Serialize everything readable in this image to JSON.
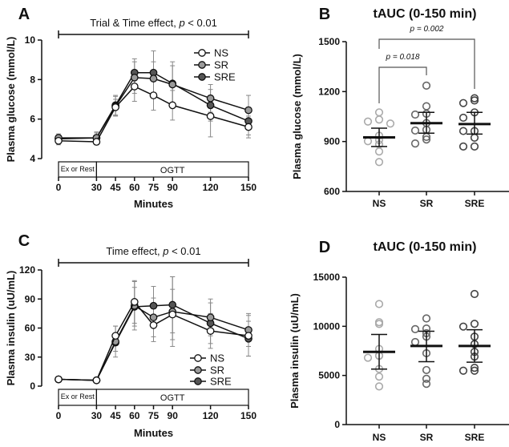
{
  "chart_data": [
    {
      "panel": "A",
      "type": "line",
      "annotation": {
        "text": "Trial & Time effect, ",
        "p": "p",
        "rest": " < 0.01"
      },
      "xlabel": "Minutes",
      "ylabel": "Plasma glucose (mmol/L)",
      "x": [
        0,
        30,
        45,
        60,
        75,
        90,
        120,
        150
      ],
      "yticks": [
        4,
        6,
        8,
        10
      ],
      "ylim": [
        4,
        10
      ],
      "phases": [
        {
          "label": "Ex or Rest",
          "from": 0,
          "to": 30
        },
        {
          "label": "OGTT",
          "from": 30,
          "to": 150
        }
      ],
      "legend_position": "top-right",
      "series": [
        {
          "name": "NS",
          "color": "#ffffff",
          "values": [
            4.9,
            4.85,
            6.6,
            7.65,
            7.2,
            6.7,
            6.15,
            5.6
          ],
          "error": [
            0.2,
            0.15,
            0.4,
            0.75,
            0.75,
            0.75,
            1.05,
            0.55
          ]
        },
        {
          "name": "SR",
          "color": "#9a9a9a",
          "values": [
            5.05,
            5.05,
            6.65,
            8.1,
            8.05,
            7.75,
            7.05,
            6.45
          ],
          "error": [
            0.2,
            0.25,
            0.5,
            0.8,
            0.85,
            0.95,
            0.7,
            0.75
          ]
        },
        {
          "name": "SRE",
          "color": "#555555",
          "values": [
            5.0,
            5.05,
            6.7,
            8.35,
            8.35,
            7.8,
            6.7,
            5.9
          ],
          "error": [
            0.15,
            0.3,
            0.5,
            0.7,
            1.1,
            1.1,
            0.8,
            0.7
          ]
        }
      ]
    },
    {
      "panel": "B",
      "type": "scatter",
      "title": "tAUC (0-150 min)",
      "ylabel": "Plasma glucose (mmol/L)",
      "categories": [
        "NS",
        "SR",
        "SRE"
      ],
      "yticks": [
        600,
        900,
        1200,
        1500
      ],
      "ylim": [
        600,
        1500
      ],
      "groups": [
        {
          "name": "NS",
          "color": "#aaaaaa",
          "points": [
            1075,
            1032,
            1020,
            1008,
            935,
            909,
            902,
            883,
            840,
            777
          ],
          "mean": 925,
          "sem": [
            870,
            980
          ]
        },
        {
          "name": "SR",
          "color": "#666666",
          "points": [
            1236,
            1112,
            1067,
            1062,
            1011,
            971,
            966,
            928,
            912,
            888
          ],
          "mean": 1010,
          "sem": [
            950,
            1075
          ]
        },
        {
          "name": "SRE",
          "color": "#444444",
          "points": [
            1160,
            1147,
            1131,
            1075,
            1043,
            963,
            963,
            923,
            870,
            870
          ],
          "mean": 1005,
          "sem": [
            945,
            1075
          ]
        }
      ],
      "comparisons": [
        {
          "from": "NS",
          "to": "SR",
          "label": "p = 0.018"
        },
        {
          "from": "NS",
          "to": "SRE",
          "label": "p = 0.002"
        }
      ]
    },
    {
      "panel": "C",
      "type": "line",
      "annotation": {
        "text": "Time effect, ",
        "p": "p",
        "rest": " < 0.01"
      },
      "xlabel": "Minutes",
      "ylabel": "Plasma insulin (uU/mL)",
      "x": [
        0,
        30,
        45,
        60,
        75,
        90,
        120,
        150
      ],
      "yticks": [
        0,
        30,
        60,
        90,
        120
      ],
      "ylim": [
        0,
        120
      ],
      "phases": [
        {
          "label": "Ex or Rest",
          "from": 0,
          "to": 30
        },
        {
          "label": "OGTT",
          "from": 30,
          "to": 150
        }
      ],
      "legend_position": "bottom-right",
      "series": [
        {
          "name": "NS",
          "color": "#ffffff",
          "values": [
            7,
            6,
            52,
            87,
            63,
            74,
            57,
            52
          ],
          "error": [
            1,
            1,
            10,
            22,
            17,
            26,
            18,
            21
          ]
        },
        {
          "name": "SR",
          "color": "#9a9a9a",
          "values": [
            7,
            6,
            46,
            83,
            71,
            77,
            71,
            58
          ],
          "error": [
            1,
            1,
            16,
            25,
            20,
            36,
            19,
            17
          ]
        },
        {
          "name": "SRE",
          "color": "#555555",
          "values": [
            7,
            6,
            45,
            82,
            83,
            84,
            65,
            49
          ],
          "error": [
            1,
            1,
            9,
            20,
            20,
            29,
            21,
            18
          ]
        }
      ]
    },
    {
      "panel": "D",
      "type": "scatter",
      "title": "tAUC (0-150 min)",
      "ylabel": "Plasma insulin (uU/mL)",
      "categories": [
        "NS",
        "SR",
        "SRE"
      ],
      "yticks": [
        0,
        5000,
        10000,
        15000
      ],
      "ylim": [
        0,
        15000
      ],
      "groups": [
        {
          "name": "NS",
          "color": "#aaaaaa",
          "points": [
            12270,
            10420,
            10240,
            7700,
            7020,
            6990,
            6800,
            5660,
            4880,
            3880
          ],
          "mean": 7400,
          "sem": [
            5650,
            9170
          ]
        },
        {
          "name": "SR",
          "color": "#666666",
          "points": [
            10800,
            9770,
            9710,
            9300,
            8950,
            8400,
            7260,
            5550,
            4660,
            4150
          ],
          "mean": 8000,
          "sem": [
            6400,
            9500
          ]
        },
        {
          "name": "SRE",
          "color": "#444444",
          "points": [
            13290,
            10250,
            9970,
            8950,
            8190,
            7400,
            6920,
            5780,
            5480,
            5480
          ],
          "mean": 8000,
          "sem": [
            6350,
            9650
          ]
        }
      ],
      "comparisons": []
    }
  ]
}
